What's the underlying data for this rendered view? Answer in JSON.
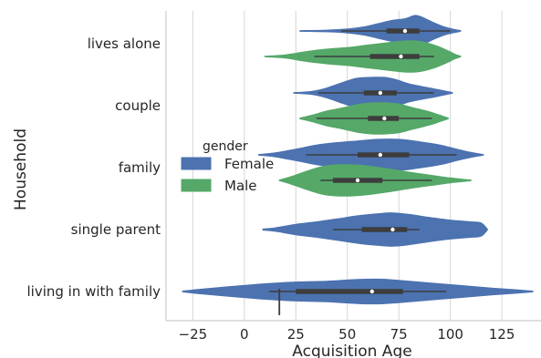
{
  "chart_data": {
    "type": "violin",
    "title": "",
    "xlabel": "Acquisition Age",
    "ylabel": "Household",
    "xlim": [
      -38,
      144
    ],
    "xticks": [
      -25,
      0,
      25,
      50,
      75,
      100,
      125
    ],
    "grid": "vertical",
    "categories": [
      "lives alone",
      "couple",
      "family",
      "single parent",
      "living in with family"
    ],
    "legend": {
      "title": "gender",
      "position": "center-left"
    },
    "series": [
      {
        "name": "Female",
        "color": "#4c72b0",
        "violins": [
          {
            "category": "lives alone",
            "min": 27,
            "max": 105,
            "q1": 69,
            "median": 78,
            "q3": 85,
            "whisker_low": 47,
            "whisker_high": 100,
            "profile": [
              [
                27,
                0.02
              ],
              [
                40,
                0.05
              ],
              [
                50,
                0.12
              ],
              [
                58,
                0.25
              ],
              [
                65,
                0.45
              ],
              [
                72,
                0.65
              ],
              [
                78,
                0.75
              ],
              [
                83,
                0.95
              ],
              [
                87,
                0.8
              ],
              [
                92,
                0.5
              ],
              [
                97,
                0.25
              ],
              [
                101,
                0.12
              ],
              [
                105,
                0.02
              ]
            ]
          },
          {
            "category": "couple",
            "min": 24,
            "max": 101,
            "q1": 58,
            "median": 66,
            "q3": 74,
            "whisker_low": 36,
            "whisker_high": 92,
            "profile": [
              [
                24,
                0.02
              ],
              [
                33,
                0.1
              ],
              [
                40,
                0.3
              ],
              [
                48,
                0.65
              ],
              [
                55,
                0.9
              ],
              [
                62,
                0.95
              ],
              [
                68,
                0.95
              ],
              [
                74,
                0.8
              ],
              [
                80,
                0.55
              ],
              [
                88,
                0.35
              ],
              [
                95,
                0.18
              ],
              [
                101,
                0.02
              ]
            ]
          },
          {
            "category": "family",
            "min": 7,
            "max": 116,
            "q1": 55,
            "median": 66,
            "q3": 80,
            "whisker_low": 30,
            "whisker_high": 103,
            "profile": [
              [
                7,
                0.02
              ],
              [
                15,
                0.12
              ],
              [
                25,
                0.35
              ],
              [
                35,
                0.6
              ],
              [
                45,
                0.75
              ],
              [
                55,
                0.85
              ],
              [
                65,
                0.95
              ],
              [
                75,
                0.95
              ],
              [
                85,
                0.8
              ],
              [
                95,
                0.6
              ],
              [
                103,
                0.35
              ],
              [
                110,
                0.15
              ],
              [
                116,
                0.02
              ]
            ]
          },
          {
            "category": "single parent",
            "min": 9,
            "max": 118,
            "q1": 57,
            "median": 72,
            "q3": 79,
            "whisker_low": 43,
            "whisker_high": 85,
            "profile": [
              [
                9,
                0.03
              ],
              [
                15,
                0.1
              ],
              [
                25,
                0.3
              ],
              [
                35,
                0.45
              ],
              [
                45,
                0.62
              ],
              [
                55,
                0.8
              ],
              [
                65,
                0.92
              ],
              [
                72,
                0.97
              ],
              [
                80,
                0.88
              ],
              [
                90,
                0.7
              ],
              [
                100,
                0.55
              ],
              [
                110,
                0.45
              ],
              [
                115,
                0.38
              ],
              [
                118,
                0.02
              ]
            ]
          },
          {
            "category": "living in with family",
            "min": -30,
            "max": 140,
            "q1": 25,
            "median": 62,
            "q3": 77,
            "whisker_low": 12,
            "whisker_high": 98,
            "profile": [
              [
                -30,
                0.02
              ],
              [
                -20,
                0.15
              ],
              [
                -5,
                0.3
              ],
              [
                10,
                0.45
              ],
              [
                25,
                0.55
              ],
              [
                40,
                0.6
              ],
              [
                55,
                0.7
              ],
              [
                65,
                0.72
              ],
              [
                75,
                0.65
              ],
              [
                90,
                0.5
              ],
              [
                105,
                0.35
              ],
              [
                120,
                0.2
              ],
              [
                132,
                0.1
              ],
              [
                140,
                0.02
              ]
            ]
          }
        ]
      },
      {
        "name": "Male",
        "color": "#55a868",
        "violins": [
          {
            "category": "lives alone",
            "min": 10,
            "max": 105,
            "q1": 61,
            "median": 76,
            "q3": 85,
            "whisker_low": 34,
            "whisker_high": 92,
            "profile": [
              [
                10,
                0.02
              ],
              [
                20,
                0.1
              ],
              [
                30,
                0.3
              ],
              [
                40,
                0.45
              ],
              [
                50,
                0.55
              ],
              [
                60,
                0.7
              ],
              [
                70,
                0.85
              ],
              [
                78,
                0.95
              ],
              [
                85,
                0.92
              ],
              [
                92,
                0.7
              ],
              [
                98,
                0.4
              ],
              [
                102,
                0.15
              ],
              [
                105,
                0.02
              ]
            ]
          },
          {
            "category": "couple",
            "min": 27,
            "max": 99,
            "q1": 60,
            "median": 68,
            "q3": 75,
            "whisker_low": 35,
            "whisker_high": 91,
            "profile": [
              [
                27,
                0.03
              ],
              [
                33,
                0.2
              ],
              [
                40,
                0.45
              ],
              [
                48,
                0.65
              ],
              [
                55,
                0.85
              ],
              [
                62,
                0.95
              ],
              [
                68,
                0.95
              ],
              [
                75,
                0.88
              ],
              [
                82,
                0.65
              ],
              [
                90,
                0.4
              ],
              [
                96,
                0.15
              ],
              [
                99,
                0.02
              ]
            ]
          },
          {
            "category": "family",
            "min": 17,
            "max": 110,
            "q1": 43,
            "median": 55,
            "q3": 67,
            "whisker_low": 37,
            "whisker_high": 91,
            "profile": [
              [
                17,
                0.02
              ],
              [
                22,
                0.2
              ],
              [
                30,
                0.55
              ],
              [
                38,
                0.85
              ],
              [
                45,
                0.95
              ],
              [
                52,
                0.95
              ],
              [
                60,
                0.88
              ],
              [
                70,
                0.7
              ],
              [
                80,
                0.5
              ],
              [
                90,
                0.32
              ],
              [
                100,
                0.15
              ],
              [
                110,
                0.02
              ]
            ]
          }
        ]
      }
    ],
    "annotation_line": {
      "x": 17,
      "category": "living in with family"
    }
  }
}
